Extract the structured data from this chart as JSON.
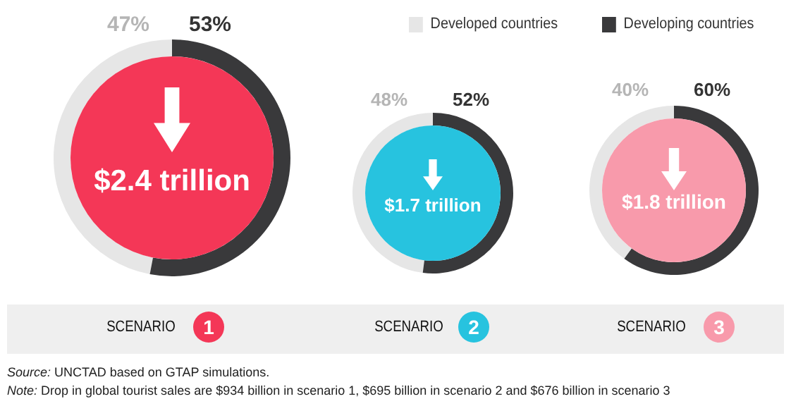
{
  "chart_data": [
    {
      "type": "donut",
      "title": "SCENARIO",
      "subtitle": "1",
      "categories": [
        null,
        null
      ],
      "values": [
        47,
        53
      ],
      "value_labels": [
        "47%",
        "53%"
      ],
      "colors": [
        "#e6e6e6",
        "#39393b"
      ],
      "annotations": [
        "$2.4 trillion"
      ],
      "legend": false
    },
    {
      "type": "donut",
      "title": "SCENARIO",
      "subtitle": "2",
      "categories": [
        null,
        null
      ],
      "values": [
        48,
        52
      ],
      "value_labels": [
        "48%",
        "52%"
      ],
      "colors": [
        "#e6e6e6",
        "#39393b"
      ],
      "annotations": [
        "$1.7 trillion"
      ],
      "legend": false
    },
    {
      "type": "donut",
      "title": "SCENARIO",
      "subtitle": "3",
      "categories": [
        "Developed countries",
        "Developing countries"
      ],
      "values": [
        40,
        60
      ],
      "value_labels": [
        "40%",
        "60%"
      ],
      "colors": [
        "#e6e6e6",
        "#39393b"
      ],
      "annotations": [
        "$1.8 trillion"
      ],
      "legend": "top left"
    },
    {
      "type": "other",
      "annotations": [
        "Source: UNCTAD based on GTAP simulations.",
        "Note: Drop in global tourist sales are $934 billion in scenario 1, $695 billion in scenario 2 and $676 billion in scenario 3"
      ]
    }
  ]
}
